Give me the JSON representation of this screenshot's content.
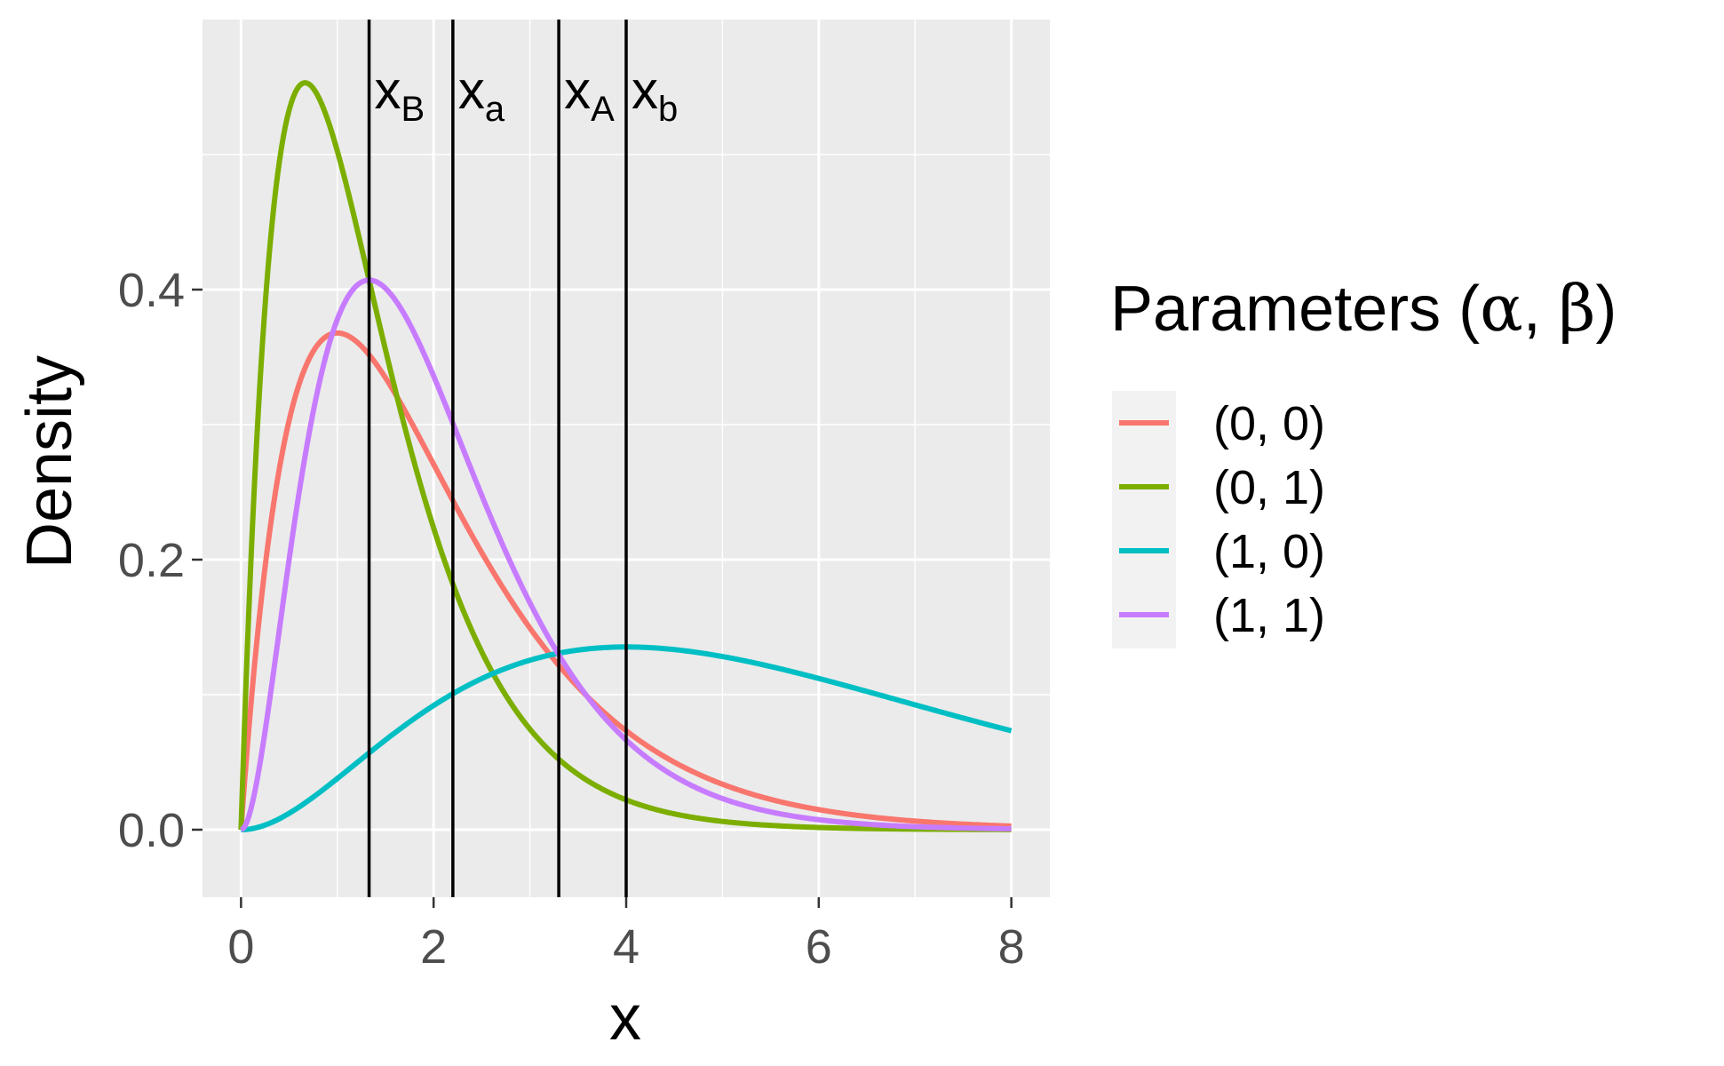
{
  "chart_data": {
    "type": "line",
    "title": "",
    "xlabel": "x",
    "ylabel": "Density",
    "xlim": [
      -0.4,
      8.4
    ],
    "ylim": [
      -0.05,
      0.6
    ],
    "x_ticks": [
      0,
      2,
      4,
      6,
      8
    ],
    "x_tick_labels": [
      "0",
      "2",
      "4",
      "6",
      "8"
    ],
    "y_ticks": [
      0.0,
      0.2,
      0.4
    ],
    "y_tick_labels": [
      "0.0",
      "0.2",
      "0.4"
    ],
    "grid": true,
    "legend": {
      "title_prefix": "Parameters (",
      "title_alpha": "α",
      "title_sep": ", ",
      "title_beta": "β",
      "title_suffix": ")",
      "placement": "right"
    },
    "series": [
      {
        "name": "(0, 0)",
        "color": "#F8766D",
        "shape": 2,
        "scale": 1,
        "x_max": 8
      },
      {
        "name": "(0, 1)",
        "color": "#7CAE00",
        "shape": 2,
        "scale": 0.665,
        "x_max": 8
      },
      {
        "name": "(1, 0)",
        "color": "#00BFC4",
        "shape": 3,
        "scale": 2,
        "x_max": 8
      },
      {
        "name": "(1, 1)",
        "color": "#C77CFF",
        "shape": 3,
        "scale": 0.665,
        "x_max": 8
      }
    ],
    "vertical_lines": [
      {
        "x": 1.33,
        "base": "x",
        "sub": "B"
      },
      {
        "x": 2.2,
        "base": "x",
        "sub": "a"
      },
      {
        "x": 3.3,
        "base": "x",
        "sub": "A"
      },
      {
        "x": 4.0,
        "base": "x",
        "sub": "b"
      }
    ]
  }
}
